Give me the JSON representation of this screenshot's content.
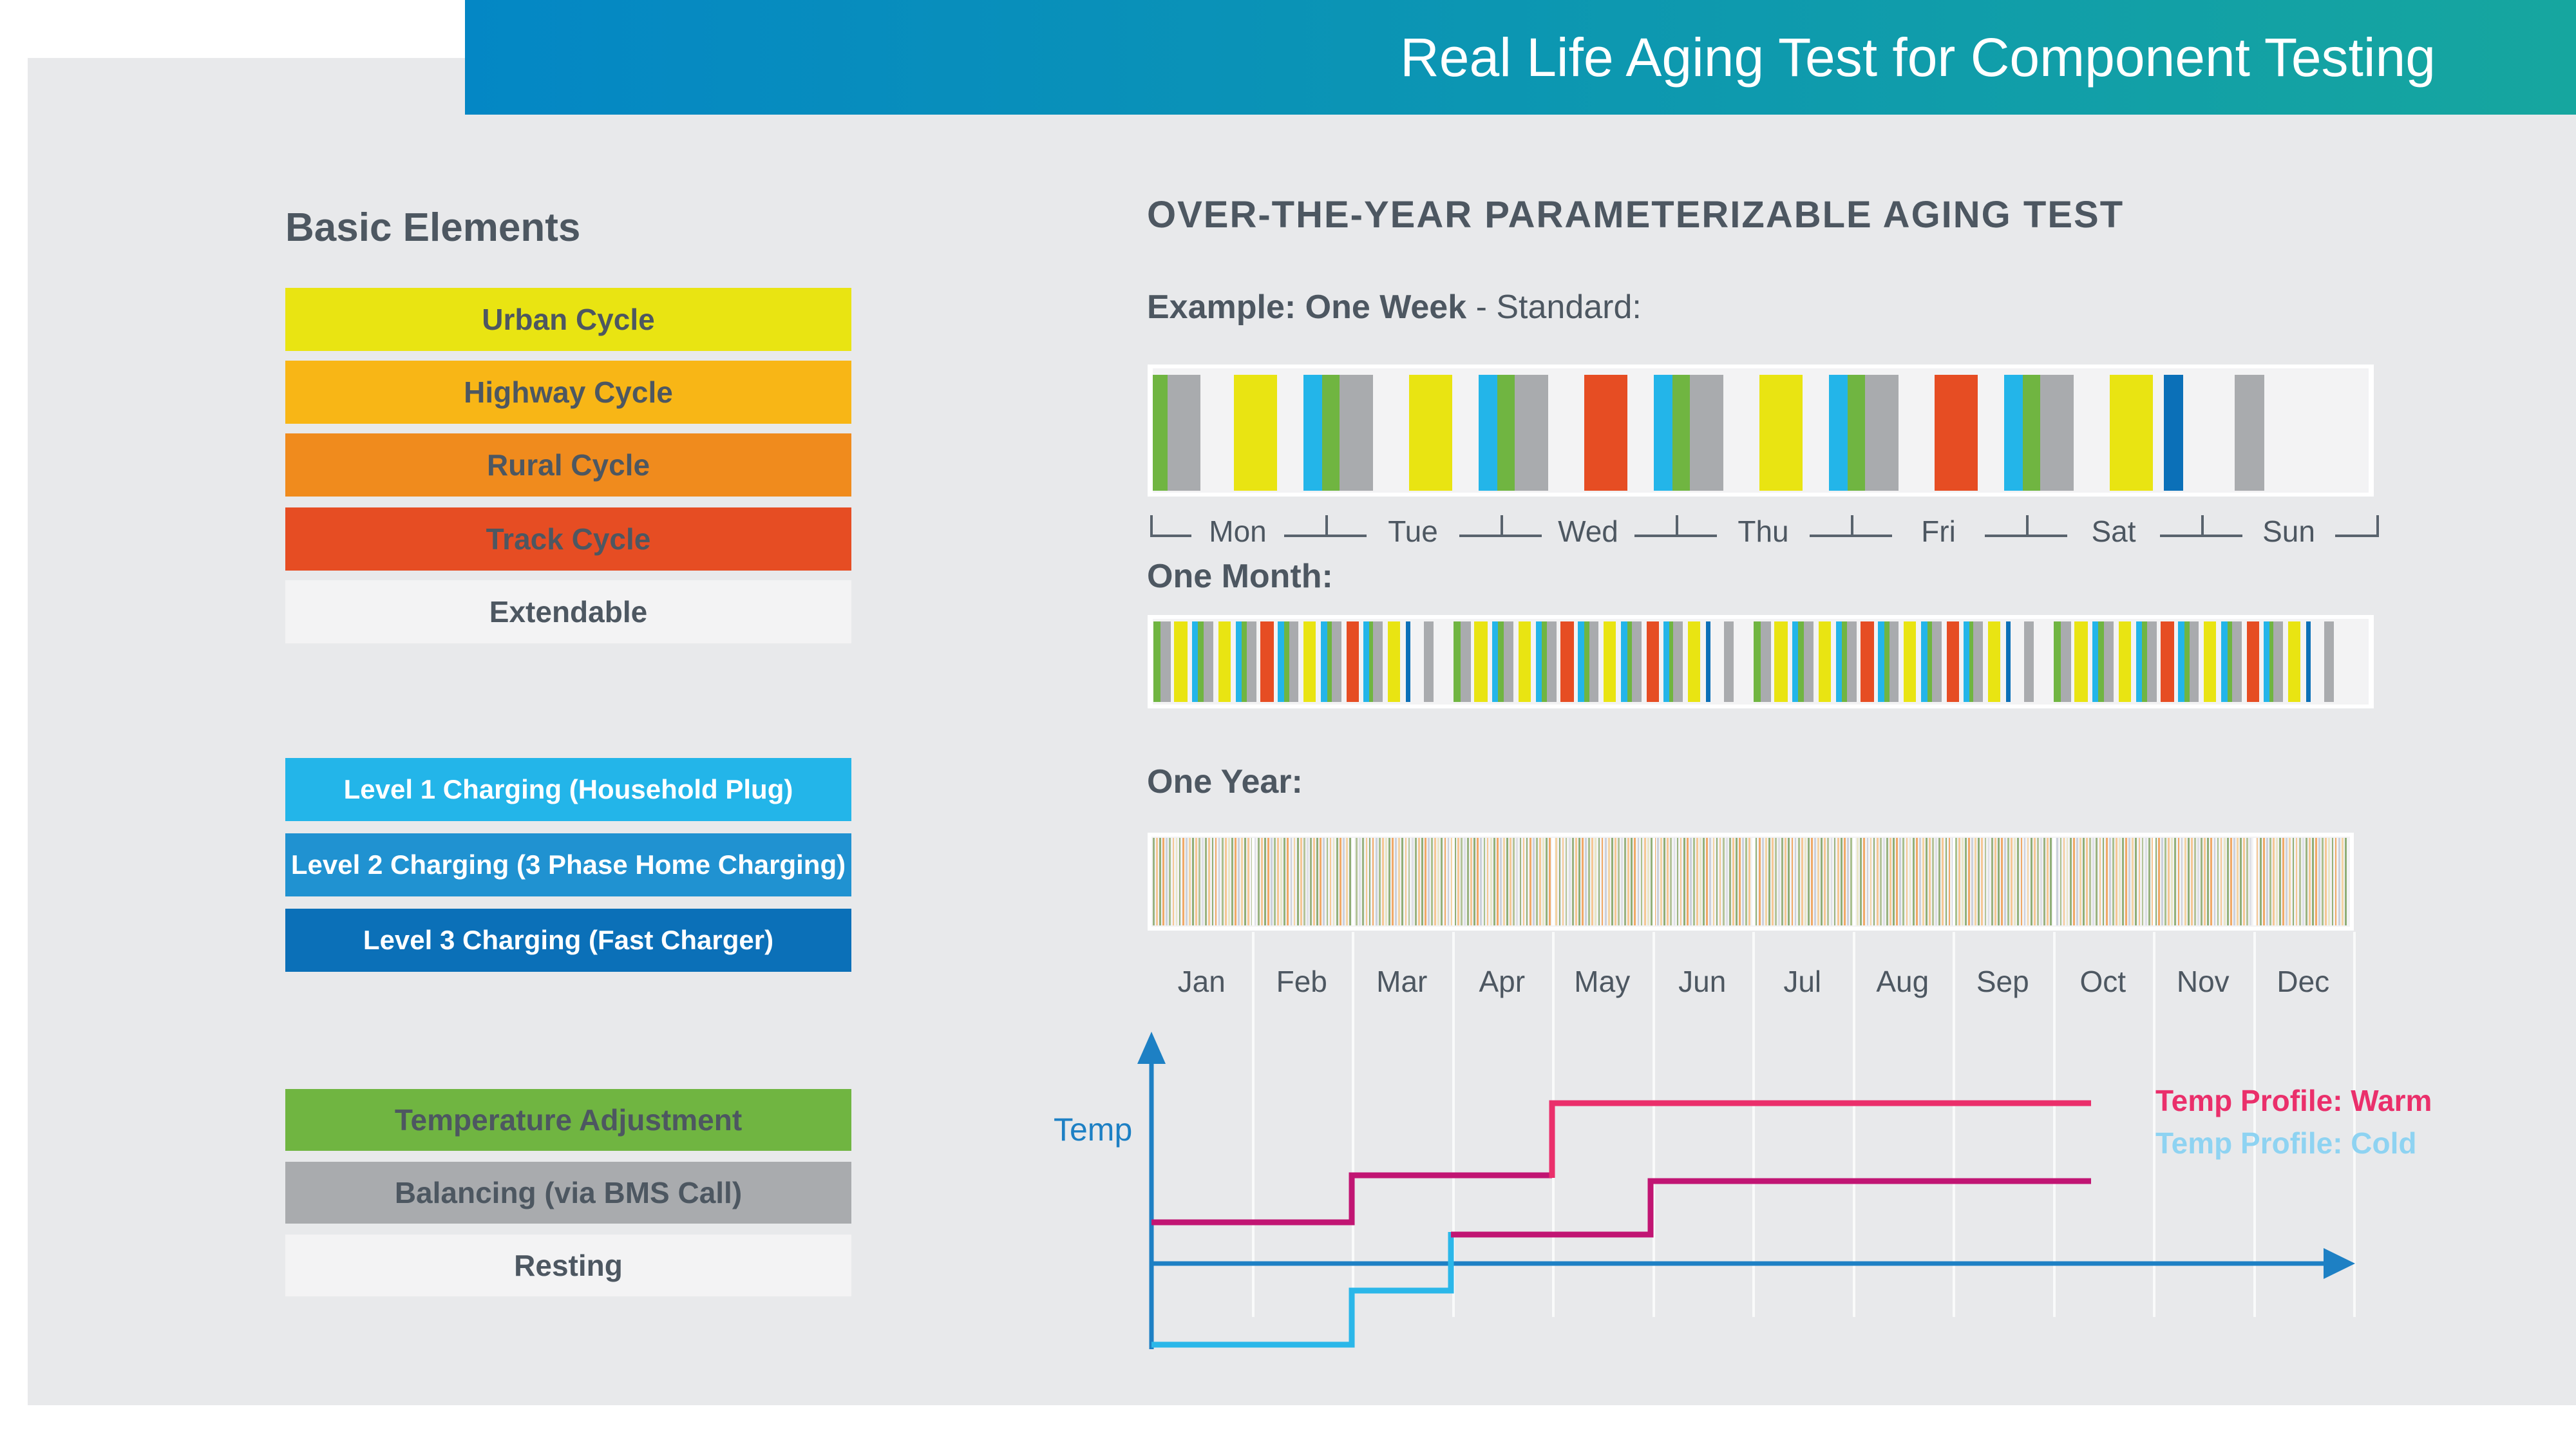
{
  "colors": {
    "yellow": "#e9e412",
    "amber": "#f8b616",
    "orange": "#f08b1d",
    "red": "#e64d23",
    "light": "#f3f3f4",
    "cyan": "#23b5e9",
    "blue2": "#2092d1",
    "blue3": "#0b70b8",
    "green": "#70b541",
    "gray": "#a9abae",
    "panel": "#e8e9eb",
    "dark_text": "#4d5761",
    "white_text": "#ffffff",
    "axis_blue": "#1d80c4",
    "warm_bright": "#ea2f6b",
    "warm_dark": "#c11573",
    "cold_cyan": "#2bb7e9",
    "cold_legend": "#8ed3f2",
    "header_grad_start": "#0487c5",
    "header_grad_end": "#16a69f"
  },
  "header": {
    "title": "Real Life Aging Test for Component Testing"
  },
  "left_panel": {
    "title": "Basic Elements",
    "cycle_bars": [
      {
        "label": "Urban Cycle",
        "color": "yellow",
        "text": "dark"
      },
      {
        "label": "Highway Cycle",
        "color": "amber",
        "text": "dark"
      },
      {
        "label": "Rural Cycle",
        "color": "orange",
        "text": "dark"
      },
      {
        "label": "Track Cycle",
        "color": "red",
        "text": "dark"
      },
      {
        "label": "Extendable",
        "color": "light",
        "text": "dark"
      }
    ],
    "charging_bars": [
      {
        "label": "Level 1 Charging (Household Plug)",
        "color": "cyan",
        "text": "white"
      },
      {
        "label": "Level 2 Charging (3 Phase Home Charging)",
        "color": "blue2",
        "text": "white"
      },
      {
        "label": "Level 3 Charging (Fast Charger)",
        "color": "blue3",
        "text": "white"
      }
    ],
    "state_bars": [
      {
        "label": "Temperature Adjustment",
        "color": "green",
        "text": "dark"
      },
      {
        "label": "Balancing (via BMS Call)",
        "color": "gray",
        "text": "dark"
      },
      {
        "label": "Resting",
        "color": "light",
        "text": "dark"
      }
    ]
  },
  "right_panel": {
    "heading": "OVER-THE-YEAR PARAMETERIZABLE AGING TEST",
    "example_bold": "Example: One Week",
    "example_rest": " - Standard:",
    "month_label": "One Month:",
    "year_label": "One Year:",
    "week_days": [
      "Mon",
      "Tue",
      "Wed",
      "Thu",
      "Fri",
      "Sat",
      "Sun"
    ],
    "week_bars": [
      {
        "c": "green",
        "x": 1790,
        "w": 23
      },
      {
        "c": "gray",
        "x": 1813,
        "w": 51
      },
      {
        "c": "yellow",
        "x": 1916,
        "w": 67
      },
      {
        "c": "cyan",
        "x": 2024,
        "w": 29
      },
      {
        "c": "green",
        "x": 2053,
        "w": 27
      },
      {
        "c": "gray",
        "x": 2080,
        "w": 52
      },
      {
        "c": "yellow",
        "x": 2188,
        "w": 67
      },
      {
        "c": "cyan",
        "x": 2296,
        "w": 29
      },
      {
        "c": "green",
        "x": 2325,
        "w": 27
      },
      {
        "c": "gray",
        "x": 2352,
        "w": 52
      },
      {
        "c": "red",
        "x": 2460,
        "w": 67
      },
      {
        "c": "cyan",
        "x": 2568,
        "w": 29
      },
      {
        "c": "green",
        "x": 2597,
        "w": 27
      },
      {
        "c": "gray",
        "x": 2624,
        "w": 52
      },
      {
        "c": "yellow",
        "x": 2732,
        "w": 67
      },
      {
        "c": "cyan",
        "x": 2840,
        "w": 29
      },
      {
        "c": "green",
        "x": 2869,
        "w": 27
      },
      {
        "c": "gray",
        "x": 2896,
        "w": 52
      },
      {
        "c": "red",
        "x": 3004,
        "w": 67
      },
      {
        "c": "cyan",
        "x": 3112,
        "w": 29
      },
      {
        "c": "green",
        "x": 3141,
        "w": 27
      },
      {
        "c": "gray",
        "x": 3168,
        "w": 52
      },
      {
        "c": "yellow",
        "x": 3276,
        "w": 67
      },
      {
        "c": "blue3",
        "x": 3360,
        "w": 30
      },
      {
        "c": "gray",
        "x": 3470,
        "w": 46
      }
    ],
    "month_week_starts": [
      1791,
      2257,
      2723,
      3189
    ],
    "month_week_pattern": [
      {
        "c": "green",
        "o": 0,
        "w": 11
      },
      {
        "c": "gray",
        "o": 11,
        "w": 16
      },
      {
        "c": "yellow",
        "o": 32,
        "w": 21
      },
      {
        "c": "cyan",
        "o": 60,
        "w": 9
      },
      {
        "c": "green",
        "o": 69,
        "w": 9
      },
      {
        "c": "gray",
        "o": 78,
        "w": 15
      },
      {
        "c": "yellow",
        "o": 101,
        "w": 19
      },
      {
        "c": "cyan",
        "o": 128,
        "w": 9
      },
      {
        "c": "green",
        "o": 137,
        "w": 8
      },
      {
        "c": "gray",
        "o": 145,
        "w": 15
      },
      {
        "c": "red",
        "o": 166,
        "w": 21
      },
      {
        "c": "cyan",
        "o": 193,
        "w": 10
      },
      {
        "c": "green",
        "o": 203,
        "w": 8
      },
      {
        "c": "gray",
        "o": 211,
        "w": 14
      },
      {
        "c": "yellow",
        "o": 233,
        "w": 19
      },
      {
        "c": "cyan",
        "o": 260,
        "w": 10
      },
      {
        "c": "green",
        "o": 270,
        "w": 7
      },
      {
        "c": "gray",
        "o": 277,
        "w": 15
      },
      {
        "c": "red",
        "o": 300,
        "w": 19
      },
      {
        "c": "cyan",
        "o": 326,
        "w": 9
      },
      {
        "c": "green",
        "o": 335,
        "w": 6
      },
      {
        "c": "gray",
        "o": 341,
        "w": 15
      },
      {
        "c": "yellow",
        "o": 364,
        "w": 19
      },
      {
        "c": "blue3",
        "o": 392,
        "w": 7
      },
      {
        "c": "gray",
        "o": 420,
        "w": 15
      }
    ],
    "year_months": [
      "Jan",
      "Feb",
      "Mar",
      "Apr",
      "May",
      "Jun",
      "Jul",
      "Aug",
      "Sep",
      "Oct",
      "Nov",
      "Dec"
    ],
    "year_bar_count": 365,
    "year_palette": [
      "#9ab381",
      "#f6c795",
      "#8fae77",
      "#f1a967",
      "#ccd1dc",
      "#a9c08e",
      "#f6c795",
      "#e9e6c8",
      "#93b17b",
      "#f1a967",
      "#ccd1dc",
      "#f4d4a4",
      "#8fae77",
      "#f6c795",
      "#b4c49a",
      "#dfe0e6"
    ]
  },
  "chart": {
    "temp_label": "Temp",
    "legend": [
      {
        "label": "Temp Profile: Warm",
        "color_key": "warm_bright"
      },
      {
        "label": "Temp Profile: Cold",
        "color_key": "cold_legend"
      }
    ],
    "lines": [
      {
        "name": "warm-profile-start",
        "color_key": "warm_dark",
        "points": [
          [
            1788,
            1898
          ],
          [
            2099,
            1898
          ],
          [
            2099,
            1825
          ],
          [
            2410,
            1825
          ]
        ]
      },
      {
        "name": "warm-profile-peak",
        "color_key": "warm_bright",
        "points": [
          [
            2410,
            1829
          ],
          [
            2410,
            1713
          ],
          [
            3247,
            1713
          ]
        ]
      },
      {
        "name": "cold-profile-start",
        "color_key": "cold_cyan",
        "points": [
          [
            1788,
            2088
          ],
          [
            2099,
            2088
          ],
          [
            2099,
            2004
          ],
          [
            2253,
            2004
          ],
          [
            2253,
            1913
          ]
        ]
      },
      {
        "name": "cold-profile-rise",
        "color_key": "warm_dark",
        "points": [
          [
            2253,
            1917
          ],
          [
            2563,
            1917
          ],
          [
            2563,
            1834
          ],
          [
            3247,
            1834
          ]
        ]
      }
    ]
  },
  "chart_data": {
    "type": "line",
    "title": "Temp profiles over one year (stepped, unlabeled y-axis)",
    "x_ticks": [
      "Jan",
      "Feb",
      "Mar",
      "Apr",
      "May",
      "Jun",
      "Jul",
      "Aug",
      "Sep",
      "Oct",
      "Nov",
      "Dec"
    ],
    "ylabel": "Temp",
    "legend_position": "right",
    "series": [
      {
        "name": "Temp Profile: Warm",
        "step_levels": [
          [
            "Jan",
            2
          ],
          [
            "Mar",
            3
          ],
          [
            "May",
            5
          ]
        ],
        "ends": "mid-Oct"
      },
      {
        "name": "Temp Profile: Cold",
        "step_levels": [
          [
            "Jan",
            -2
          ],
          [
            "Mar",
            -1
          ],
          [
            "Apr",
            1.5
          ],
          [
            "Jun",
            2.5
          ]
        ],
        "ends": "mid-Oct"
      }
    ]
  }
}
